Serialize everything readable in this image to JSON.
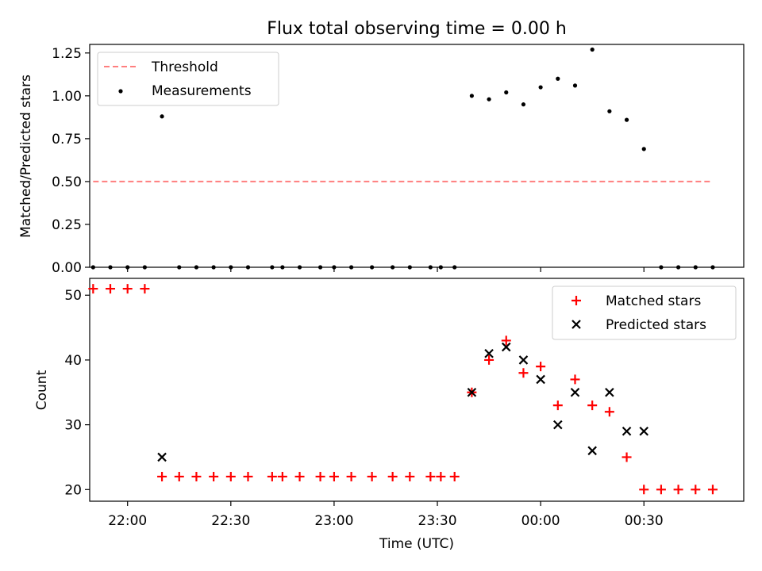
{
  "figure": {
    "title": "Flux total observing time = 0.00 h"
  },
  "chart_data": [
    {
      "type": "scatter",
      "panel": "top",
      "title": "Flux total observing time = 0.00 h",
      "xlabel": "",
      "ylabel": "Matched/Predicted stars",
      "ylim": [
        0,
        1.3
      ],
      "yticks": [
        0.0,
        0.25,
        0.5,
        0.75,
        1.0,
        1.25
      ],
      "ytick_labels": [
        "0.00",
        "0.25",
        "0.50",
        "0.75",
        "1.00",
        "1.25"
      ],
      "xlim": [
        "21:49",
        "00:59"
      ],
      "xticks": [
        "22:00",
        "22:30",
        "23:00",
        "23:30",
        "00:00",
        "00:30"
      ],
      "grid": false,
      "legend_position": "upper left",
      "series": [
        {
          "name": "Threshold",
          "style": "dashed-line",
          "color": "#ff7f7f",
          "x": [
            "21:50",
            "00:50"
          ],
          "y": [
            0.5,
            0.5
          ]
        },
        {
          "name": "Measurements",
          "style": "dot",
          "color": "#000000",
          "x": [
            "21:50",
            "21:55",
            "22:00",
            "22:05",
            "22:10",
            "22:15",
            "22:20",
            "22:25",
            "22:30",
            "22:35",
            "22:42",
            "22:45",
            "22:50",
            "22:56",
            "23:00",
            "23:05",
            "23:11",
            "23:17",
            "23:22",
            "23:28",
            "23:31",
            "23:35",
            "23:40",
            "23:45",
            "23:50",
            "23:55",
            "00:00",
            "00:05",
            "00:10",
            "00:15",
            "00:20",
            "00:25",
            "00:30",
            "00:35",
            "00:40",
            "00:45",
            "00:50"
          ],
          "y": [
            0,
            0,
            0,
            0,
            0.88,
            0,
            0,
            0,
            0,
            0,
            0,
            0,
            0,
            0,
            0,
            0,
            0,
            0,
            0,
            0,
            0,
            0,
            1.0,
            0.98,
            1.02,
            0.95,
            1.05,
            1.1,
            1.06,
            1.27,
            0.91,
            0.86,
            0.69,
            0,
            0,
            0,
            0
          ]
        }
      ]
    },
    {
      "type": "scatter",
      "panel": "bottom",
      "xlabel": "Time (UTC)",
      "ylabel": "Count",
      "ylim": [
        18.2,
        52.6
      ],
      "yticks": [
        20,
        30,
        40,
        50
      ],
      "ytick_labels": [
        "20",
        "30",
        "40",
        "50"
      ],
      "xlim": [
        "21:49",
        "00:59"
      ],
      "xticks": [
        "22:00",
        "22:30",
        "23:00",
        "23:30",
        "00:00",
        "00:30"
      ],
      "xtick_labels": [
        "22:00",
        "22:30",
        "23:00",
        "23:30",
        "00:00",
        "00:30"
      ],
      "grid": false,
      "legend_position": "upper right",
      "series": [
        {
          "name": "Matched stars",
          "marker": "plus",
          "color": "#ff0000",
          "x": [
            "21:50",
            "21:55",
            "22:00",
            "22:05",
            "22:10",
            "22:15",
            "22:20",
            "22:25",
            "22:30",
            "22:35",
            "22:42",
            "22:45",
            "22:50",
            "22:56",
            "23:00",
            "23:05",
            "23:11",
            "23:17",
            "23:22",
            "23:28",
            "23:31",
            "23:35",
            "23:40",
            "23:45",
            "23:50",
            "23:55",
            "00:00",
            "00:05",
            "00:10",
            "00:15",
            "00:20",
            "00:25",
            "00:30",
            "00:35",
            "00:40",
            "00:45",
            "00:50"
          ],
          "y": [
            51,
            51,
            51,
            51,
            22,
            22,
            22,
            22,
            22,
            22,
            22,
            22,
            22,
            22,
            22,
            22,
            22,
            22,
            22,
            22,
            22,
            22,
            35,
            40,
            43,
            38,
            39,
            33,
            37,
            33,
            32,
            25,
            20,
            20,
            20,
            20,
            20
          ]
        },
        {
          "name": "Predicted stars",
          "marker": "x",
          "color": "#000000",
          "x": [
            "22:10",
            "23:40",
            "23:45",
            "23:50",
            "23:55",
            "00:00",
            "00:05",
            "00:10",
            "00:15",
            "00:20",
            "00:25",
            "00:30"
          ],
          "y": [
            25,
            35,
            41,
            42,
            40,
            37,
            30,
            35,
            26,
            35,
            29,
            29
          ]
        }
      ]
    }
  ]
}
